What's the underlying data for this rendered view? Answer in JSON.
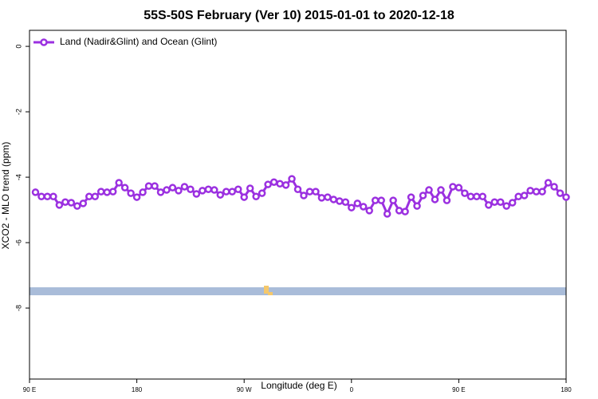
{
  "chart_data": {
    "type": "line",
    "title": "55S-50S February (Ver 10)   2015-01-01 to 2020-12-18",
    "x_label": "Longitude (deg E)",
    "y_label": "XCO2 - MLO trend (ppm)",
    "x": [
      95,
      100,
      105,
      110,
      115,
      120,
      125,
      130,
      135,
      140,
      145,
      150,
      155,
      160,
      165,
      170,
      175,
      180,
      185,
      190,
      195,
      200,
      205,
      210,
      215,
      220,
      225,
      230,
      235,
      240,
      245,
      250,
      255,
      260,
      265,
      270,
      275,
      280,
      285,
      290,
      295,
      300,
      305,
      310,
      315,
      320,
      325,
      330,
      335,
      340,
      345,
      350,
      355,
      360,
      365,
      370,
      375,
      380,
      385,
      390,
      395,
      400,
      405,
      410,
      415,
      420,
      425,
      430,
      435,
      440,
      445,
      450,
      455,
      460,
      465,
      470,
      475,
      480,
      485,
      490,
      495,
      500,
      505,
      510,
      515,
      520,
      525,
      530,
      535,
      540
    ],
    "series": [
      {
        "name": "Land (Nadir&Glint) and Ocean (Glint)",
        "color": "#9b30e0",
        "values": [
          -4.46,
          -4.59,
          -4.59,
          -4.59,
          -4.85,
          -4.76,
          -4.78,
          -4.88,
          -4.8,
          -4.59,
          -4.59,
          -4.44,
          -4.46,
          -4.44,
          -4.17,
          -4.32,
          -4.49,
          -4.61,
          -4.46,
          -4.27,
          -4.27,
          -4.46,
          -4.39,
          -4.32,
          -4.41,
          -4.29,
          -4.37,
          -4.51,
          -4.41,
          -4.37,
          -4.39,
          -4.54,
          -4.44,
          -4.44,
          -4.37,
          -4.61,
          -4.34,
          -4.59,
          -4.49,
          -4.22,
          -4.15,
          -4.2,
          -4.24,
          -4.05,
          -4.37,
          -4.56,
          -4.44,
          -4.44,
          -4.63,
          -4.61,
          -4.68,
          -4.73,
          -4.76,
          -4.93,
          -4.8,
          -4.9,
          -5.02,
          -4.71,
          -4.71,
          -5.12,
          -4.71,
          -5.02,
          -5.05,
          -4.61,
          -4.88,
          -4.56,
          -4.39,
          -4.68,
          -4.39,
          -4.71,
          -4.29,
          -4.32,
          -4.49,
          -4.59,
          -4.59,
          -4.59,
          -4.85,
          -4.76,
          -4.76,
          -4.88,
          -4.78,
          -4.59,
          -4.56,
          -4.41,
          -4.44,
          -4.44,
          -4.17,
          -4.29,
          -4.49,
          -4.61
        ]
      }
    ],
    "xlim": [
      90,
      540
    ],
    "xticks": [
      {
        "value": 90,
        "label": "90 E"
      },
      {
        "value": 180,
        "label": "180"
      },
      {
        "value": 270,
        "label": "90 W"
      },
      {
        "value": 360,
        "label": "0"
      },
      {
        "value": 450,
        "label": "90 E"
      },
      {
        "value": 540,
        "label": "180"
      }
    ],
    "ylim": [
      -10.17,
      0.49
    ],
    "yticks": [
      0,
      -2,
      -4,
      -6,
      -8
    ],
    "legend": "top-left",
    "grid": false
  }
}
